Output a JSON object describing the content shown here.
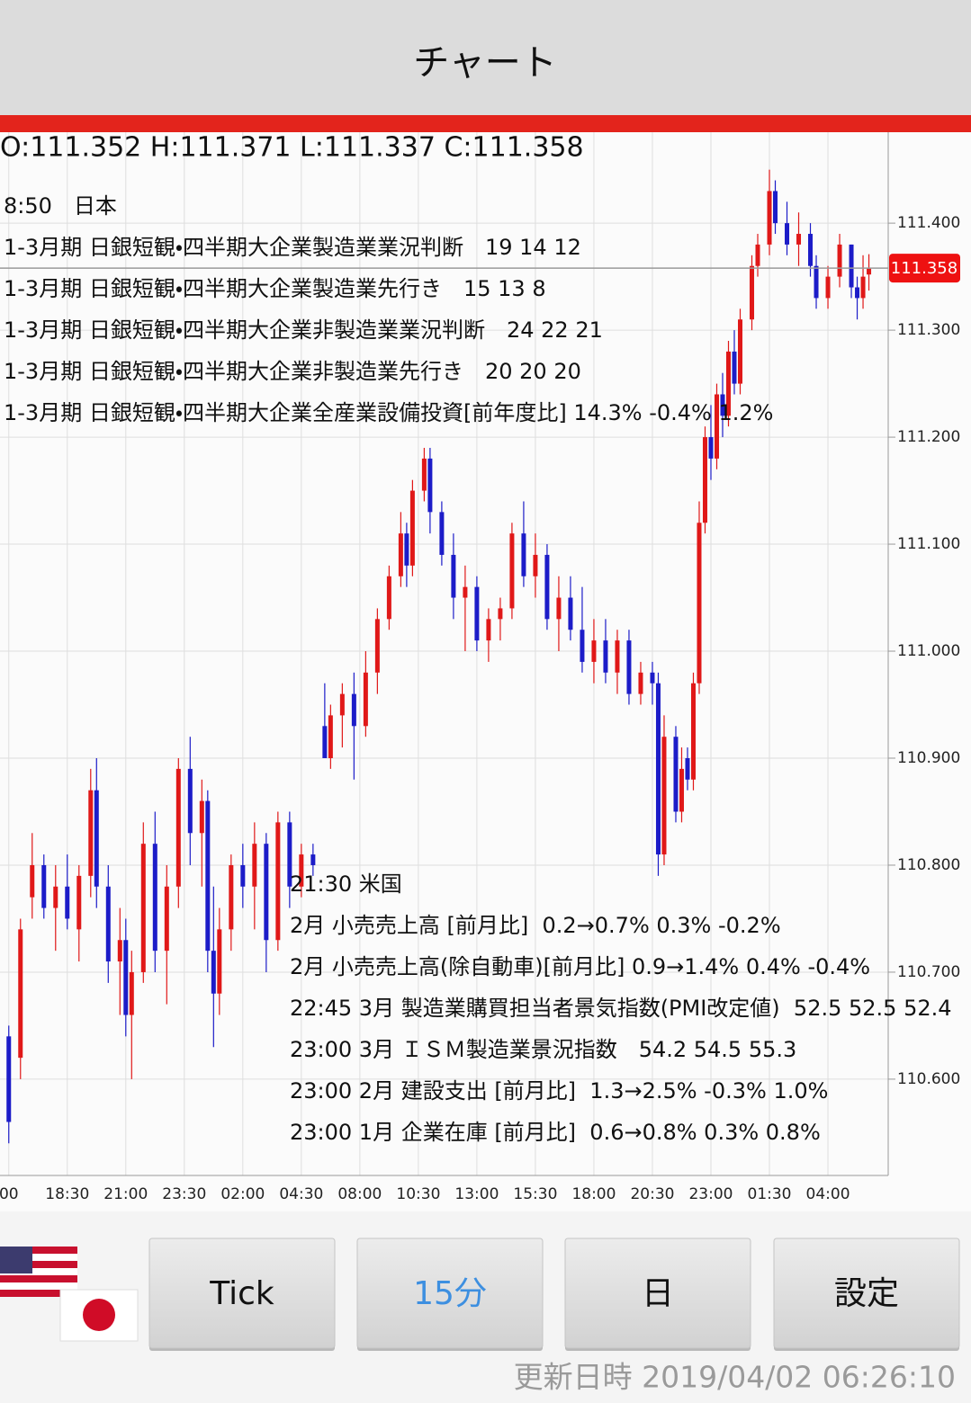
{
  "header": {
    "title": "チャート"
  },
  "ohlc": "O:111.352 H:111.371 L:111.337 C:111.358",
  "events_japan": {
    "header": "8:50　日本",
    "items": [
      "1-3月期 日銀短観・四半期大企業製造業業況判断　19 14 12",
      "1-3月期 日銀短観・四半期大企業製造業先行き　15 13 8",
      "1-3月期 日銀短観・四半期大企業非製造業業況判断　24 22 21",
      "1-3月期 日銀短観・四半期大企業非製造業先行き　20 20 20",
      "1-3月期 日銀短観・四半期大企業全産業設備投資[前年度比] 14.3% -0.4% 1.2%"
    ]
  },
  "events_us": {
    "header": "21:30 米国",
    "items": [
      "2月 小売売上高 [前月比]  0.2→0.7% 0.3% -0.2%",
      "2月 小売売上高(除自動車)[前月比] 0.9→1.4% 0.4% -0.4%",
      "22:45 3月 製造業購買担当者景気指数(PMI改定値)  52.5 52.5 52.4",
      "23:00 3月 ＩＳＭ製造業景況指数　54.2 54.5 55.3",
      "23:00 2月 建設支出 [前月比]  1.3→2.5% -0.3% 1.0%",
      "23:00 1月 企業在庫 [前月比]  0.6→0.8% 0.3% 0.8%"
    ]
  },
  "chart_data": {
    "type": "candlestick",
    "up_color": "#e01818",
    "down_color": "#1c1cc8",
    "grid": true,
    "x": [
      0,
      2,
      4,
      6,
      8,
      10,
      12,
      14,
      15,
      17,
      19,
      20,
      21,
      23,
      25,
      27,
      29,
      31,
      33,
      34,
      35,
      36,
      38,
      40,
      42,
      44,
      46,
      48,
      50,
      52,
      54,
      55,
      57,
      59,
      61,
      63,
      65,
      67,
      68,
      69,
      71,
      72,
      74,
      76,
      78,
      80,
      82,
      84,
      86,
      88,
      90,
      92,
      94,
      96,
      98,
      100,
      102,
      104,
      106,
      108,
      110,
      111,
      112,
      114,
      115,
      116,
      117,
      118,
      119,
      120,
      121,
      122,
      123,
      124,
      125,
      127,
      128,
      130,
      131,
      133,
      135,
      137,
      138,
      140,
      142,
      144,
      145,
      146,
      147
    ],
    "open": [
      110.64,
      110.62,
      110.77,
      110.8,
      110.76,
      110.78,
      110.74,
      110.79,
      110.87,
      110.78,
      110.71,
      110.73,
      110.66,
      110.7,
      110.82,
      110.72,
      110.78,
      110.89,
      110.83,
      110.86,
      110.72,
      110.68,
      110.74,
      110.8,
      110.78,
      110.82,
      110.73,
      110.84,
      110.78,
      110.81,
      110.93,
      110.9,
      110.94,
      110.96,
      110.93,
      110.98,
      111.03,
      111.07,
      111.11,
      111.08,
      111.15,
      111.18,
      111.13,
      111.09,
      111.05,
      111.06,
      111.01,
      111.03,
      111.04,
      111.11,
      111.07,
      111.09,
      111.03,
      111.05,
      111.02,
      110.99,
      111.01,
      110.98,
      111.01,
      110.96,
      110.98,
      110.97,
      110.81,
      110.92,
      110.85,
      110.9,
      110.88,
      110.97,
      111.12,
      111.2,
      111.18,
      111.24,
      111.22,
      111.28,
      111.25,
      111.31,
      111.36,
      111.38,
      111.43,
      111.4,
      111.38,
      111.39,
      111.36,
      111.33,
      111.35,
      111.38,
      111.34,
      111.33,
      111.352
    ],
    "high": [
      110.65,
      110.75,
      110.83,
      110.81,
      110.8,
      110.81,
      110.8,
      110.89,
      110.9,
      110.8,
      110.76,
      110.75,
      110.72,
      110.84,
      110.85,
      110.8,
      110.9,
      110.92,
      110.88,
      110.87,
      110.78,
      110.76,
      110.81,
      110.82,
      110.84,
      110.83,
      110.85,
      110.85,
      110.82,
      110.82,
      110.97,
      110.95,
      110.97,
      110.98,
      111.0,
      111.04,
      111.08,
      111.13,
      111.12,
      111.16,
      111.19,
      111.19,
      111.14,
      111.11,
      111.08,
      111.07,
      111.04,
      111.05,
      111.12,
      111.14,
      111.11,
      111.1,
      111.07,
      111.07,
      111.06,
      111.03,
      111.03,
      111.02,
      111.02,
      110.99,
      110.99,
      110.98,
      110.94,
      110.93,
      110.91,
      110.91,
      110.98,
      111.14,
      111.21,
      111.23,
      111.25,
      111.26,
      111.29,
      111.3,
      111.32,
      111.37,
      111.39,
      111.45,
      111.44,
      111.42,
      111.41,
      111.4,
      111.37,
      111.36,
      111.39,
      111.38,
      111.35,
      111.37,
      111.371
    ],
    "low": [
      110.54,
      110.6,
      110.75,
      110.75,
      110.72,
      110.74,
      110.71,
      110.77,
      110.76,
      110.69,
      110.66,
      110.64,
      110.6,
      110.69,
      110.7,
      110.67,
      110.76,
      110.8,
      110.78,
      110.7,
      110.63,
      110.66,
      110.72,
      110.76,
      110.74,
      110.7,
      110.72,
      110.76,
      110.77,
      110.79,
      110.9,
      110.89,
      110.91,
      110.88,
      110.92,
      110.96,
      111.02,
      111.06,
      111.06,
      111.07,
      111.14,
      111.11,
      111.08,
      111.03,
      111.0,
      111.0,
      110.99,
      111.01,
      111.03,
      111.06,
      111.05,
      111.02,
      111.0,
      111.01,
      110.98,
      110.97,
      110.97,
      110.96,
      110.95,
      110.95,
      110.95,
      110.79,
      110.8,
      110.84,
      110.84,
      110.87,
      110.87,
      110.96,
      111.11,
      111.16,
      111.17,
      111.2,
      111.21,
      111.24,
      111.24,
      111.3,
      111.35,
      111.37,
      111.39,
      111.37,
      111.36,
      111.35,
      111.32,
      111.32,
      111.34,
      111.33,
      111.31,
      111.32,
      111.337
    ],
    "close": [
      110.56,
      110.74,
      110.8,
      110.76,
      110.78,
      110.75,
      110.79,
      110.87,
      110.78,
      110.71,
      110.73,
      110.66,
      110.7,
      110.82,
      110.72,
      110.78,
      110.89,
      110.83,
      110.86,
      110.72,
      110.68,
      110.74,
      110.8,
      110.78,
      110.82,
      110.73,
      110.84,
      110.78,
      110.81,
      110.8,
      110.9,
      110.94,
      110.96,
      110.93,
      110.98,
      111.03,
      111.07,
      111.11,
      111.08,
      111.15,
      111.18,
      111.13,
      111.09,
      111.05,
      111.06,
      111.01,
      111.03,
      111.04,
      111.11,
      111.07,
      111.09,
      111.03,
      111.05,
      111.02,
      110.99,
      111.01,
      110.98,
      111.01,
      110.96,
      110.98,
      110.97,
      110.81,
      110.92,
      110.85,
      110.89,
      110.88,
      110.97,
      111.12,
      111.2,
      111.18,
      111.24,
      111.22,
      111.28,
      111.25,
      111.31,
      111.36,
      111.38,
      111.43,
      111.4,
      111.38,
      111.39,
      111.36,
      111.33,
      111.35,
      111.38,
      111.34,
      111.33,
      111.35,
      111.358
    ],
    "xlim": [
      -1.5,
      150.3
    ],
    "xticks": [
      {
        "value": 0,
        "label": "00"
      },
      {
        "value": 10,
        "label": "18:30"
      },
      {
        "value": 20,
        "label": "21:00"
      },
      {
        "value": 30,
        "label": "23:30"
      },
      {
        "value": 40,
        "label": "02:00"
      },
      {
        "value": 50,
        "label": "04:30"
      },
      {
        "value": 60,
        "label": "08:00"
      },
      {
        "value": 70,
        "label": "10:30"
      },
      {
        "value": 80,
        "label": "13:00"
      },
      {
        "value": 90,
        "label": "15:30"
      },
      {
        "value": 100,
        "label": "18:00"
      },
      {
        "value": 110,
        "label": "20:30"
      },
      {
        "value": 120,
        "label": "23:00"
      },
      {
        "value": 130,
        "label": "01:30"
      },
      {
        "value": 140,
        "label": "04:00"
      }
    ],
    "ylim": [
      110.51,
      111.485
    ],
    "yticks": [
      {
        "value": 110.6,
        "label": "110.600"
      },
      {
        "value": 110.7,
        "label": "110.700"
      },
      {
        "value": 110.8,
        "label": "110.800"
      },
      {
        "value": 110.9,
        "label": "110.900"
      },
      {
        "value": 111.0,
        "label": "111.000"
      },
      {
        "value": 111.1,
        "label": "111.100"
      },
      {
        "value": 111.2,
        "label": "111.200"
      },
      {
        "value": 111.3,
        "label": "111.300"
      },
      {
        "value": 111.4,
        "label": "111.400"
      }
    ],
    "last_price": {
      "value": 111.358,
      "label": "111.358"
    }
  },
  "buttons": [
    "Tick",
    "15分",
    "日",
    "設定"
  ],
  "selected_button": 1,
  "footer": "更新日時 2019/04/02 06:26:10"
}
